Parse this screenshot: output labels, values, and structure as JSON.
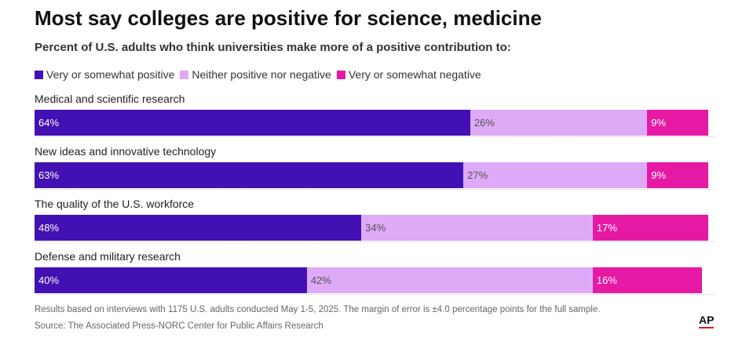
{
  "chart_data": {
    "type": "bar",
    "orientation": "horizontal-stacked",
    "title": "Most say colleges are positive for science, medicine",
    "subtitle": "Percent of U.S. adults who think universities make more of a positive contribution to:",
    "series": [
      {
        "name": "Very or somewhat positive",
        "color": "#4311b3",
        "values": [
          64,
          63,
          48,
          40
        ]
      },
      {
        "name": "Neither positive nor negative",
        "color": "#dea9f7",
        "values": [
          26,
          27,
          34,
          42
        ]
      },
      {
        "name": "Very or somewhat negative",
        "color": "#e619a4",
        "values": [
          9,
          9,
          17,
          16
        ]
      }
    ],
    "categories": [
      "Medical and scientific research",
      "New ideas and innovative technology",
      "The quality of the U.S. workforce",
      "Defense and military research"
    ],
    "value_labels": [
      [
        "64%",
        "26%",
        "9%"
      ],
      [
        "63%",
        "27%",
        "9%"
      ],
      [
        "48%",
        "34%",
        "17%"
      ],
      [
        "40%",
        "42%",
        "16%"
      ]
    ],
    "xlim": [
      0,
      100
    ],
    "legend_position": "top-left"
  },
  "notes": {
    "methodology": "Results based on interviews with 1175 U.S. adults conducted May 1-5, 2025. The margin of error is ±4.0 percentage points for the full sample.",
    "source": "Source: The Associated Press-NORC Center for Public Affairs Research"
  },
  "logo": {
    "text": "AP",
    "accent": "#e4131d"
  }
}
